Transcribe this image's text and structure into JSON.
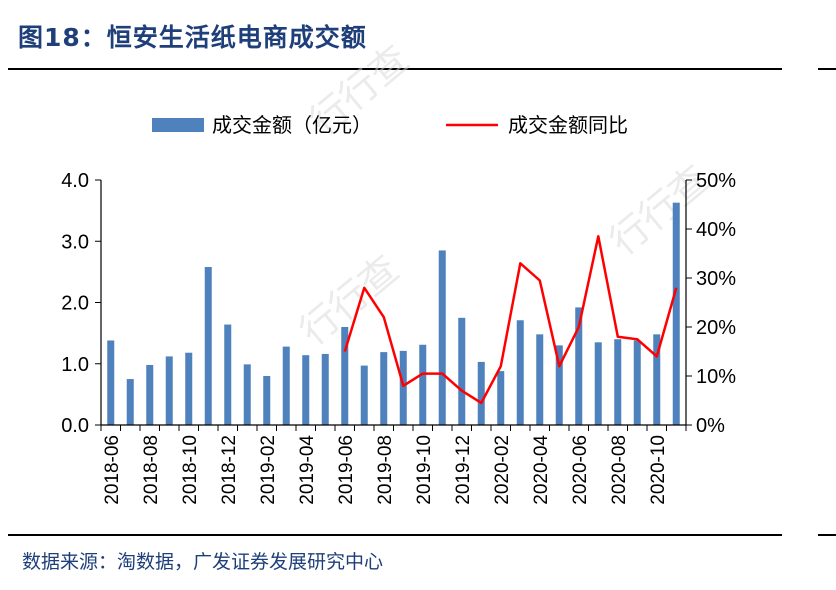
{
  "figure": {
    "title": "图18：恒安生活纸电商成交额",
    "source": "数据来源：淘数据，广发证券发展研究中心",
    "watermark": "行行查"
  },
  "chart_data": {
    "type": "bar+line",
    "categories": [
      "2018-06",
      "2018-07",
      "2018-08",
      "2018-09",
      "2018-10",
      "2018-11",
      "2018-12",
      "2019-01",
      "2019-02",
      "2019-03",
      "2019-04",
      "2019-05",
      "2019-06",
      "2019-07",
      "2019-08",
      "2019-09",
      "2019-10",
      "2019-11",
      "2019-12",
      "2020-01",
      "2020-02",
      "2020-03",
      "2020-04",
      "2020-05",
      "2020-06",
      "2020-07",
      "2020-08",
      "2020-09",
      "2020-10",
      "2020-11"
    ],
    "x_tick_labels": [
      "2018-06",
      "2018-08",
      "2018-10",
      "2018-12",
      "2019-02",
      "2019-04",
      "2019-06",
      "2019-08",
      "2019-10",
      "2019-12",
      "2020-02",
      "2020-04",
      "2020-06",
      "2020-08",
      "2020-10"
    ],
    "series": [
      {
        "name": "成交金额（亿元）",
        "type": "bar",
        "axis": "left",
        "color": "#4f81bd",
        "values": [
          1.38,
          0.75,
          0.98,
          1.12,
          1.18,
          2.58,
          1.64,
          0.99,
          0.8,
          1.28,
          1.14,
          1.16,
          1.6,
          0.97,
          1.19,
          1.21,
          1.31,
          2.85,
          1.75,
          1.03,
          0.88,
          1.71,
          1.48,
          1.3,
          1.92,
          1.35,
          1.4,
          1.38,
          1.48,
          3.63
        ]
      },
      {
        "name": "成交金额同比",
        "type": "line",
        "axis": "right",
        "color": "#ff0000",
        "values": [
          null,
          null,
          null,
          null,
          null,
          null,
          null,
          null,
          null,
          null,
          null,
          null,
          15,
          28,
          22,
          8,
          10.5,
          10.5,
          7,
          4.5,
          12,
          33,
          29.5,
          12,
          20,
          38.5,
          18,
          17.5,
          14,
          28
        ]
      }
    ],
    "y_left": {
      "min": 0,
      "max": 4,
      "ticks": [
        "0.0",
        "1.0",
        "2.0",
        "3.0",
        "4.0"
      ]
    },
    "y_right": {
      "min": 0,
      "max": 50,
      "ticks": [
        "0%",
        "10%",
        "20%",
        "30%",
        "40%",
        "50%"
      ]
    },
    "legend_position": "top",
    "grid": false
  }
}
